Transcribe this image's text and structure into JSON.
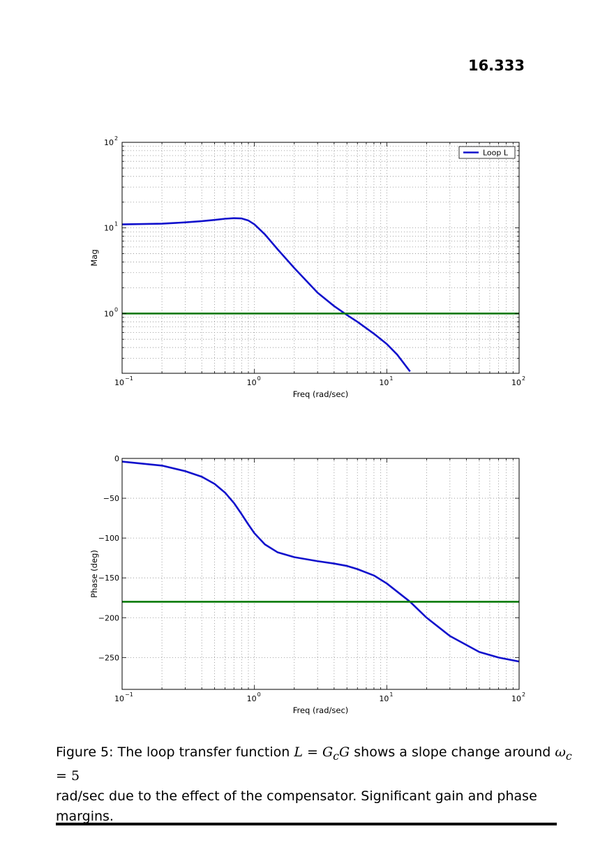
{
  "page": {
    "number": "16.333"
  },
  "chart_data": [
    {
      "type": "line",
      "xscale": "log",
      "yscale": "log",
      "xlim": [
        0.1,
        100
      ],
      "ylim": [
        0.2,
        100
      ],
      "xlabel": "Freq (rad/sec)",
      "ylabel": "Mag",
      "x_ticks": [
        {
          "base": "10",
          "exp": "−1"
        },
        {
          "base": "10",
          "exp": "0"
        },
        {
          "base": "10",
          "exp": "1"
        },
        {
          "base": "10",
          "exp": "2"
        }
      ],
      "y_ticks": [
        {
          "base": "10",
          "exp": "0"
        },
        {
          "base": "10",
          "exp": "1"
        },
        {
          "base": "10",
          "exp": "2"
        }
      ],
      "grid": true,
      "legend": {
        "position": "top-right",
        "entries": [
          "Loop L"
        ]
      },
      "series": [
        {
          "name": "Loop L",
          "color": "#1010cc",
          "x": [
            0.1,
            0.2,
            0.3,
            0.4,
            0.5,
            0.6,
            0.7,
            0.8,
            0.9,
            1.0,
            1.2,
            1.5,
            2.0,
            3.0,
            4.0,
            5.0,
            6.0,
            8.0,
            10.0,
            12.0,
            15.0
          ],
          "y": [
            11.0,
            11.2,
            11.6,
            12.0,
            12.4,
            12.8,
            13.0,
            12.9,
            12.2,
            11.0,
            8.4,
            5.6,
            3.4,
            1.75,
            1.22,
            0.96,
            0.8,
            0.58,
            0.44,
            0.33,
            0.21
          ]
        },
        {
          "color": "#0a7a0a",
          "x": [
            0.1,
            100
          ],
          "y": [
            1,
            1
          ]
        }
      ]
    },
    {
      "type": "line",
      "xscale": "log",
      "xlim": [
        0.1,
        100
      ],
      "ylim": [
        -290,
        0
      ],
      "xlabel": "Freq (rad/sec)",
      "ylabel": "Phase (deg)",
      "x_ticks": [
        {
          "base": "10",
          "exp": "−1"
        },
        {
          "base": "10",
          "exp": "0"
        },
        {
          "base": "10",
          "exp": "1"
        },
        {
          "base": "10",
          "exp": "2"
        }
      ],
      "y_ticks": [
        {
          "value": 0,
          "label": "0"
        },
        {
          "value": -50,
          "label": "−50"
        },
        {
          "value": -100,
          "label": "−100"
        },
        {
          "value": -150,
          "label": "−150"
        },
        {
          "value": -200,
          "label": "−200"
        },
        {
          "value": -250,
          "label": "−250"
        }
      ],
      "grid": true,
      "series": [
        {
          "color": "#1010cc",
          "x": [
            0.1,
            0.2,
            0.3,
            0.4,
            0.5,
            0.6,
            0.7,
            0.8,
            0.9,
            1.0,
            1.2,
            1.5,
            2.0,
            3.0,
            4.0,
            5.0,
            6.0,
            8.0,
            10.0,
            15.0,
            20.0,
            30.0,
            50.0,
            70.0,
            100.0
          ],
          "y": [
            -4,
            -9,
            -16,
            -23,
            -32,
            -43,
            -56,
            -70,
            -83,
            -94,
            -108,
            -118,
            -124,
            -129,
            -132,
            -135,
            -139,
            -147,
            -157,
            -180,
            -200,
            -223,
            -243,
            -250,
            -255
          ]
        },
        {
          "color": "#0a7a0a",
          "x": [
            0.1,
            100
          ],
          "y": [
            -180,
            -180
          ]
        }
      ]
    }
  ],
  "caption": {
    "label": "Figure 5:",
    "text_1": "The loop transfer function",
    "math_L": "L",
    "math_eq": " = ",
    "math_Gc": "G",
    "math_c": "c",
    "math_G": "G",
    "text_2": "shows a slope change around",
    "math_omega": "ω",
    "math_omega_sub": "c",
    "math_eq2": " = ",
    "math_five": "5",
    "text_3": "rad/sec due to the effect of the compensator. Significant gain and phase margins."
  }
}
